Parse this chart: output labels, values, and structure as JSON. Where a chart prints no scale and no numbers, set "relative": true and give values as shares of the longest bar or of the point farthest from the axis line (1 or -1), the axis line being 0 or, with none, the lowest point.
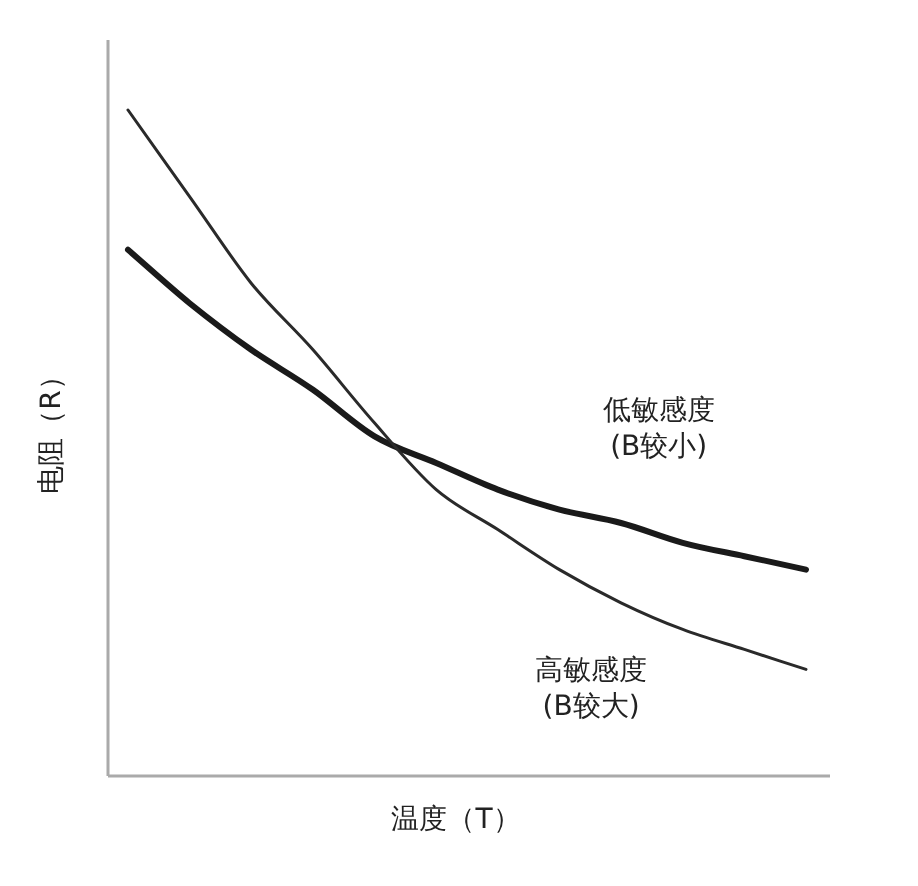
{
  "chart_data": {
    "type": "line",
    "relative": true,
    "xlabel": "温度（T）",
    "ylabel": "电阻（R）",
    "categories": [
      null,
      null,
      null,
      null,
      null,
      null,
      null,
      null,
      null,
      null,
      null,
      null
    ],
    "series": [
      {
        "name": "低敏感度\n(B较小)",
        "color": "#1a1a1a",
        "values": [
          0.79,
          0.71,
          0.64,
          0.58,
          0.51,
          0.47,
          0.43,
          0.4,
          0.38,
          0.35,
          0.33,
          0.31
        ]
      },
      {
        "name": "高敏感度\n(B较大)",
        "color": "#2a2a2a",
        "values": [
          1.0,
          0.87,
          0.74,
          0.64,
          0.53,
          0.43,
          0.37,
          0.31,
          0.26,
          0.22,
          0.19,
          0.16
        ]
      }
    ],
    "marker": "none",
    "line_style": "solid"
  }
}
